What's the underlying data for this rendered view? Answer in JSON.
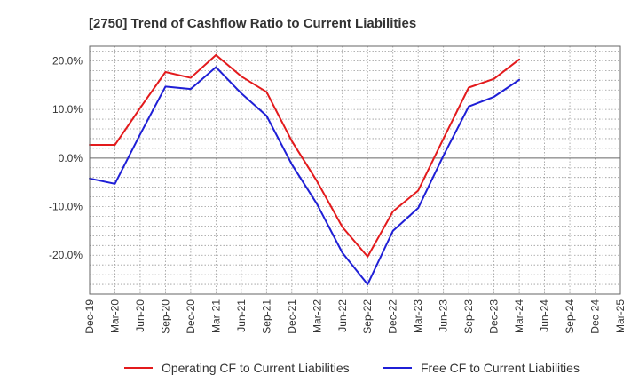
{
  "chart_data": {
    "type": "line",
    "title": "[2750]  Trend of Cashflow Ratio to Current Liabilities",
    "xlabel": "",
    "ylabel": "",
    "x": [
      "Dec-19",
      "Mar-20",
      "Jun-20",
      "Sep-20",
      "Dec-20",
      "Mar-21",
      "Jun-21",
      "Sep-21",
      "Dec-21",
      "Mar-22",
      "Jun-22",
      "Sep-22",
      "Dec-22",
      "Mar-23",
      "Jun-23",
      "Sep-23",
      "Dec-23",
      "Mar-24",
      "Jun-24",
      "Sep-24",
      "Dec-24",
      "Mar-25"
    ],
    "ylim": [
      -28,
      23
    ],
    "y_ticks": [
      20,
      10,
      0,
      -10,
      -20
    ],
    "y_tick_labels": [
      "20.0%",
      "10.0%",
      "0.0%",
      "-10.0%",
      "-20.0%"
    ],
    "grid": true,
    "legend_position": "bottom",
    "series": [
      {
        "name": "Operating CF to Current Liabilities",
        "color": "#e31a1c",
        "values": [
          2.7,
          2.7,
          10.3,
          17.7,
          16.5,
          21.2,
          16.8,
          13.6,
          3.5,
          -4.8,
          -14.2,
          -20.3,
          -11.0,
          -6.7,
          4.0,
          14.5,
          16.3,
          20.3,
          null,
          null,
          null,
          null
        ]
      },
      {
        "name": "Free CF to Current Liabilities",
        "color": "#1f1fd6",
        "values": [
          -4.2,
          -5.3,
          4.9,
          14.7,
          14.2,
          18.7,
          13.3,
          8.7,
          -1.3,
          -9.5,
          -19.5,
          -26.0,
          -15.0,
          -10.3,
          0.5,
          10.6,
          12.6,
          16.1,
          null,
          null,
          null,
          null
        ]
      }
    ]
  }
}
